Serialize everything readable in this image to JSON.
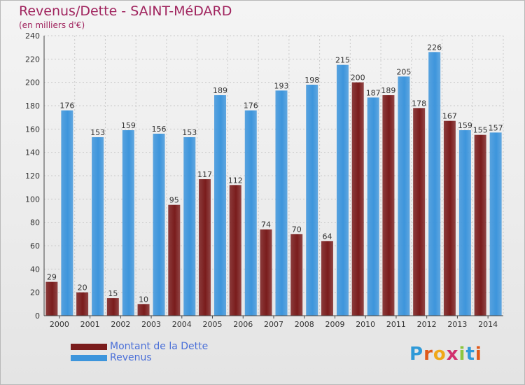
{
  "header": {
    "title": "Revenus/Dette - SAINT-MéDARD",
    "subtitle": "(en milliers d'€)"
  },
  "chart_data": {
    "type": "bar",
    "categories": [
      "2000",
      "2001",
      "2002",
      "2003",
      "2004",
      "2005",
      "2006",
      "2007",
      "2008",
      "2009",
      "2010",
      "2011",
      "2012",
      "2013",
      "2014"
    ],
    "series": [
      {
        "name": "Montant de la Dette",
        "color": "#7a1c1c",
        "values": [
          29,
          20,
          15,
          10,
          95,
          117,
          112,
          74,
          70,
          64,
          200,
          189,
          178,
          167,
          155
        ]
      },
      {
        "name": "Revenus",
        "color": "#3d95dc",
        "values": [
          176,
          153,
          159,
          156,
          153,
          189,
          176,
          193,
          198,
          215,
          187,
          205,
          226,
          159,
          157
        ]
      }
    ],
    "yticks": [
      0,
      20,
      40,
      60,
      80,
      100,
      120,
      140,
      160,
      180,
      200,
      220,
      240
    ],
    "ylim": [
      0,
      240
    ],
    "grid": true,
    "legend": "bottom-left"
  },
  "legend": {
    "items": [
      {
        "label": "Montant de la Dette",
        "color": "#7a1c1c"
      },
      {
        "label": "Revenus",
        "color": "#3d95dc"
      }
    ]
  },
  "brand": {
    "letters": [
      "P",
      "r",
      "o",
      "x",
      "i",
      "t",
      "i"
    ],
    "colors": [
      "#2f9ad8",
      "#e05a1a",
      "#f0a818",
      "#d12f6e",
      "#8dc63f",
      "#2f9ad8",
      "#e05a1a"
    ]
  }
}
